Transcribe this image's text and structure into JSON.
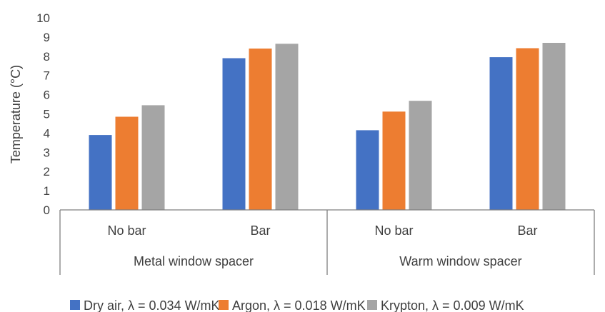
{
  "chart_data": {
    "type": "bar",
    "ylabel": "Temperature (°C)",
    "xlabel": "",
    "title": "",
    "ylim": [
      0,
      10
    ],
    "yticks": [
      "0",
      "1",
      "2",
      "3",
      "4",
      "5",
      "6",
      "7",
      "8",
      "9",
      "10"
    ],
    "groups": [
      {
        "label": "Metal window spacer",
        "categories": [
          "No bar",
          "Bar"
        ]
      },
      {
        "label": "Warm window spacer",
        "categories": [
          "No bar",
          "Bar"
        ]
      }
    ],
    "categories": [
      "No bar",
      "Bar",
      "No bar",
      "Bar"
    ],
    "series": [
      {
        "name": "Dry air, λ = 0.034 W/mK",
        "color": "#4472C4",
        "values": [
          3.9,
          7.9,
          4.15,
          7.95
        ]
      },
      {
        "name": "Argon, λ = 0.018 W/mK",
        "color": "#ED7D31",
        "values": [
          4.85,
          8.4,
          5.12,
          8.42
        ]
      },
      {
        "name": "Krypton, λ = 0.009 W/mK",
        "color": "#A5A5A5",
        "values": [
          5.45,
          8.65,
          5.68,
          8.7
        ]
      }
    ],
    "grid": false,
    "legend_position": "bottom"
  }
}
